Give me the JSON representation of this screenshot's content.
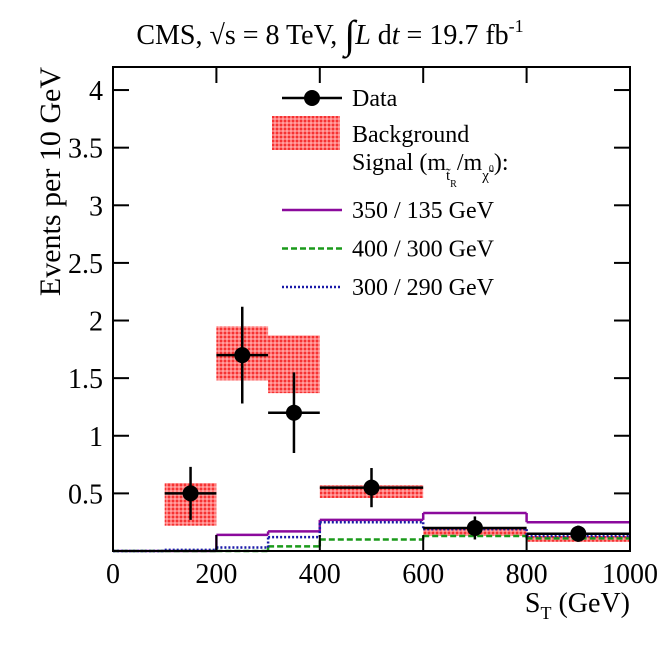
{
  "chart_data": {
    "type": "histogram",
    "title_parts": [
      "CMS, ",
      "√",
      "s = 8 TeV, ",
      "∫",
      "L",
      " d",
      "t",
      " = 19.7 fb",
      "-1"
    ],
    "ylabel": "Events per 10 GeV",
    "xlabel_parts": [
      "S",
      "T",
      " (GeV)"
    ],
    "xlim": [
      0,
      1000
    ],
    "ylim": [
      0,
      4.2
    ],
    "xticks": [
      0,
      200,
      400,
      600,
      800,
      1000
    ],
    "yticks": [
      0.5,
      1,
      1.5,
      2,
      2.5,
      3,
      3.5,
      4
    ],
    "data": {
      "name": "Data",
      "color": "#000000",
      "x": [
        150,
        250,
        350,
        500,
        700,
        900
      ],
      "xerr": [
        50,
        50,
        50,
        100,
        100,
        100
      ],
      "y": [
        0.5,
        1.7,
        1.2,
        0.55,
        0.2,
        0.15
      ],
      "yerr": [
        0.23,
        0.42,
        0.35,
        0.17,
        0.1,
        0.07
      ]
    },
    "background": {
      "name": "Background",
      "color": "#e8302f",
      "bins": [
        100,
        200,
        300,
        400,
        600,
        800,
        1000
      ],
      "low": [
        0.22,
        1.48,
        1.37,
        0.46,
        0.13,
        0.08
      ],
      "high": [
        0.59,
        1.95,
        1.87,
        0.57,
        0.2,
        0.13
      ]
    },
    "signal_header_parts": [
      "Signal (m",
      "t̃",
      "R",
      "/m",
      "χ̃",
      "0",
      "):"
    ],
    "series": [
      {
        "name": "350 / 135 GeV",
        "color": "#8b0a9c",
        "style": "solid",
        "bins": [
          0,
          100,
          200,
          300,
          400,
          600,
          800,
          1000
        ],
        "values": [
          0,
          0,
          0.14,
          0.17,
          0.27,
          0.33,
          0.25
        ]
      },
      {
        "name": "400 / 300 GeV",
        "color": "#1a9a1a",
        "style": "dashed",
        "bins": [
          0,
          100,
          200,
          300,
          400,
          600,
          800,
          1000
        ],
        "values": [
          0,
          0,
          0,
          0.04,
          0.1,
          0.13,
          0.11
        ]
      },
      {
        "name": "300 / 290 GeV",
        "color": "#1a1aa8",
        "style": "dotted",
        "bins": [
          0,
          100,
          200,
          300,
          400,
          600,
          800,
          1000
        ],
        "values": [
          0,
          0.01,
          0.03,
          0.12,
          0.25,
          0.19,
          0.13
        ]
      }
    ]
  }
}
